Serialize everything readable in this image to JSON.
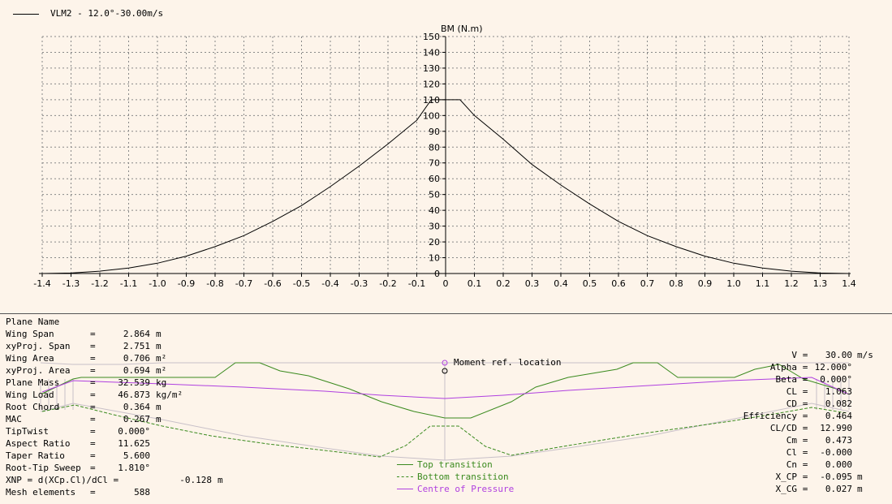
{
  "legend": {
    "series_label": "VLM2 -   12.0°-30.00m/s"
  },
  "chart_data": {
    "type": "line",
    "ylabel": "BM (N.m)",
    "xlabel": "",
    "xlim": [
      -1.4,
      1.4
    ],
    "ylim": [
      0,
      150
    ],
    "x_ticks": [
      "-1.4",
      "-1.3",
      "-1.2",
      "-1.1",
      "-1.0",
      "-0.9",
      "-0.8",
      "-0.7",
      "-0.6",
      "-0.5",
      "-0.4",
      "-0.3",
      "-0.2",
      "-0.1",
      "0",
      "0.1",
      "0.2",
      "0.3",
      "0.4",
      "0.5",
      "0.6",
      "0.7",
      "0.8",
      "0.9",
      "1.0",
      "1.1",
      "1.2",
      "1.3",
      "1.4"
    ],
    "y_ticks": [
      "0",
      "10",
      "20",
      "30",
      "40",
      "50",
      "60",
      "70",
      "80",
      "90",
      "100",
      "110",
      "120",
      "130",
      "140",
      "150"
    ],
    "grid": true,
    "series": [
      {
        "name": "VLM2 -   12.0°-30.00m/s",
        "color": "#000000",
        "x": [
          -1.4,
          -1.3,
          -1.2,
          -1.1,
          -1.0,
          -0.9,
          -0.8,
          -0.7,
          -0.6,
          -0.5,
          -0.4,
          -0.3,
          -0.2,
          -0.1,
          -0.05,
          0.0,
          0.05,
          0.1,
          0.2,
          0.3,
          0.4,
          0.5,
          0.6,
          0.7,
          0.8,
          0.9,
          1.0,
          1.1,
          1.2,
          1.3,
          1.4
        ],
        "values": [
          0,
          0.3,
          1.5,
          3.5,
          6.5,
          11,
          17,
          24,
          33,
          43,
          55,
          68,
          82,
          97,
          110,
          110,
          110,
          100,
          85,
          69,
          56,
          44,
          33,
          24,
          17,
          11,
          6.5,
          3.5,
          1.5,
          0.3,
          0
        ]
      }
    ]
  },
  "params_left": [
    {
      "label": "Plane Name",
      "eq": "",
      "value": "",
      "unit": ""
    },
    {
      "label": "Wing Span",
      "eq": "=",
      "value": "2.864",
      "unit": "m"
    },
    {
      "label": "xyProj. Span",
      "eq": "=",
      "value": "2.751",
      "unit": "m"
    },
    {
      "label": "Wing Area",
      "eq": "=",
      "value": "0.706",
      "unit": "m²"
    },
    {
      "label": "xyProj. Area",
      "eq": "=",
      "value": "0.694",
      "unit": "m²"
    },
    {
      "label": "Plane Mass",
      "eq": "=",
      "value": "32.539",
      "unit": "kg"
    },
    {
      "label": "Wing Load",
      "eq": "=",
      "value": "46.873",
      "unit": "kg/m²"
    },
    {
      "label": "Root Chord",
      "eq": "=",
      "value": "0.364",
      "unit": "m"
    },
    {
      "label": "MAC",
      "eq": "=",
      "value": "0.267",
      "unit": "m"
    },
    {
      "label": "TipTwist",
      "eq": "=",
      "value": "0.000°",
      "unit": ""
    },
    {
      "label": "Aspect Ratio",
      "eq": "=",
      "value": "11.625",
      "unit": ""
    },
    {
      "label": "Taper Ratio",
      "eq": "=",
      "value": "5.600",
      "unit": ""
    },
    {
      "label": "Root-Tip Sweep",
      "eq": "=",
      "value": "1.810°",
      "unit": ""
    },
    {
      "label": "XNP = d(XCp.Cl)/dCl =",
      "eq": "",
      "value": "-0.128",
      "unit": "m"
    },
    {
      "label": "Mesh elements",
      "eq": "=",
      "value": "588",
      "unit": ""
    }
  ],
  "params_right": [
    {
      "label": "V",
      "value": "30.00",
      "unit": "m/s"
    },
    {
      "label": "Alpha",
      "value": "12.000°",
      "unit": ""
    },
    {
      "label": "Beta",
      "value": "0.000°",
      "unit": ""
    },
    {
      "label": "CL",
      "value": "1.063",
      "unit": ""
    },
    {
      "label": "CD",
      "value": "0.082",
      "unit": ""
    },
    {
      "label": "Efficiency",
      "value": "0.464",
      "unit": ""
    },
    {
      "label": "CL/CD",
      "value": "12.990",
      "unit": ""
    },
    {
      "label": "Cm",
      "value": "0.473",
      "unit": ""
    },
    {
      "label": "Cl",
      "value": "-0.000",
      "unit": ""
    },
    {
      "label": "Cn",
      "value": "0.000",
      "unit": ""
    },
    {
      "label": "X_CP",
      "value": "-0.095",
      "unit": "m"
    },
    {
      "label": "X_CG",
      "value": "0.027",
      "unit": "m"
    }
  ],
  "moment_ref_label": "Moment ref. location",
  "bottom_legend": [
    {
      "label": "Top transition",
      "color": "#3a8a1e",
      "style": "solid"
    },
    {
      "label": "Bottom transition",
      "color": "#3a8a1e",
      "style": "dashed"
    },
    {
      "label": "Centre of Pressure",
      "color": "#b040e0",
      "style": "solid"
    }
  ],
  "colors": {
    "background": "#fdf4ea",
    "grid": "#888888",
    "transition": "#3a8a1e",
    "cp": "#b040e0",
    "outline": "#c8c0c8"
  }
}
